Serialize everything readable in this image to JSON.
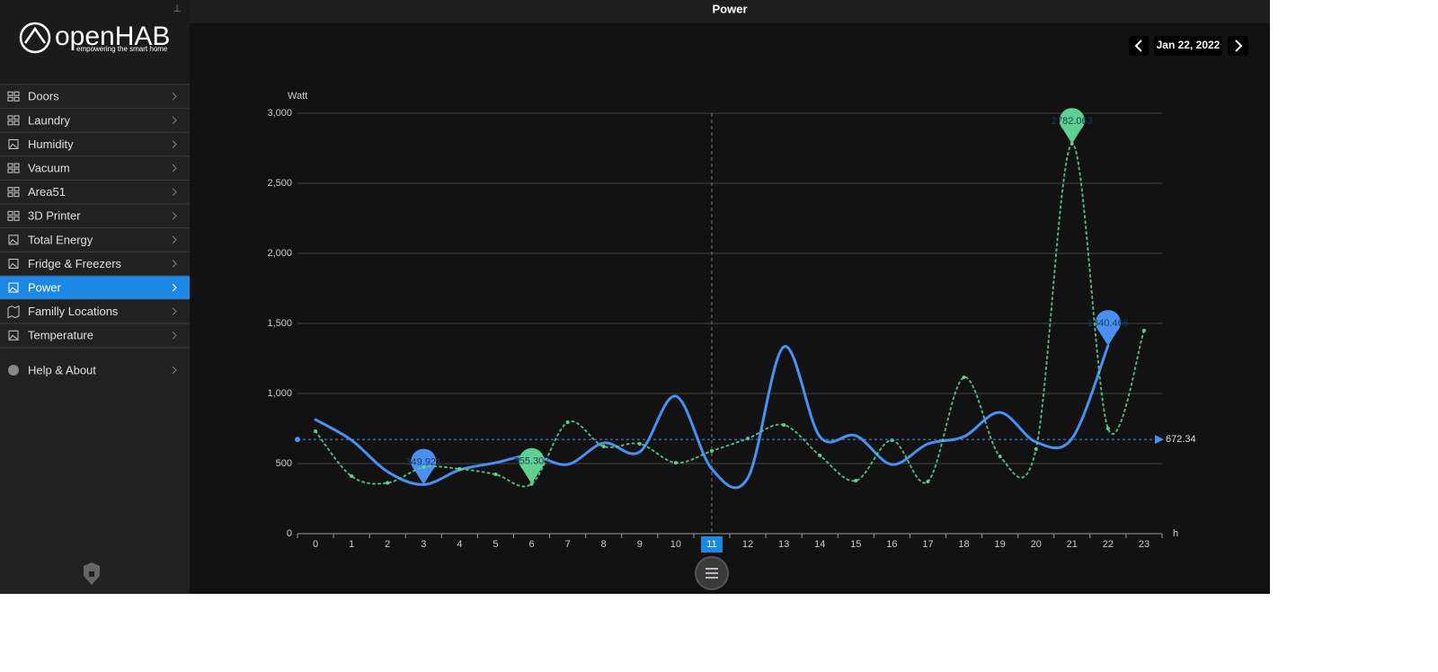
{
  "logo": {
    "name": "openHAB",
    "tagline": "empowering the smart home"
  },
  "header": {
    "title": "Power"
  },
  "date_nav": {
    "date": "Jan 22, 2022"
  },
  "sidebar": {
    "items": [
      "Doors",
      "Laundry",
      "Humidity",
      "Vacuum",
      "Area51",
      "3D Printer",
      "Total Energy",
      "Fridge & Freezers",
      "Power",
      "Familly Locations",
      "Temperature"
    ],
    "help": "Help & About"
  },
  "chart_data": {
    "type": "line",
    "ylabel": "Watt",
    "xlabel": "h",
    "categories": [
      0,
      1,
      2,
      3,
      4,
      5,
      6,
      7,
      8,
      9,
      10,
      11,
      12,
      13,
      14,
      15,
      16,
      17,
      18,
      19,
      20,
      21,
      22,
      23
    ],
    "ylim": [
      0,
      3000
    ],
    "yticks": [
      0,
      500,
      {
        "value": 1000,
        "label": "1,000"
      },
      {
        "value": 1500,
        "label": "1,500"
      },
      {
        "value": 2000,
        "label": "2,000"
      },
      {
        "value": 2500,
        "label": "2,500"
      },
      {
        "value": 3000,
        "label": "3,000"
      }
    ],
    "grid": true,
    "crosshair_x": 11,
    "mark_points": [
      "min",
      "max"
    ],
    "mark_line": 672.34,
    "series": [
      {
        "color": "#4a90f0",
        "style": "solid",
        "values": [
          814,
          667,
          442,
          349.921,
          455,
          506,
          558,
          494,
          647,
          583,
          981,
          462,
          397,
          1333,
          692,
          699,
          494,
          641,
          692,
          865,
          654,
          679,
          1340.466,
          null
        ]
      },
      {
        "color": "#5fd08f",
        "style": "dotted",
        "values": [
          731,
          410,
          362,
          474,
          462,
          423,
          355.307,
          795,
          622,
          641,
          506,
          590,
          679,
          776,
          558,
          378,
          667,
          372,
          1115,
          551,
          603,
          2782.063,
          750,
          1449
        ]
      }
    ]
  }
}
